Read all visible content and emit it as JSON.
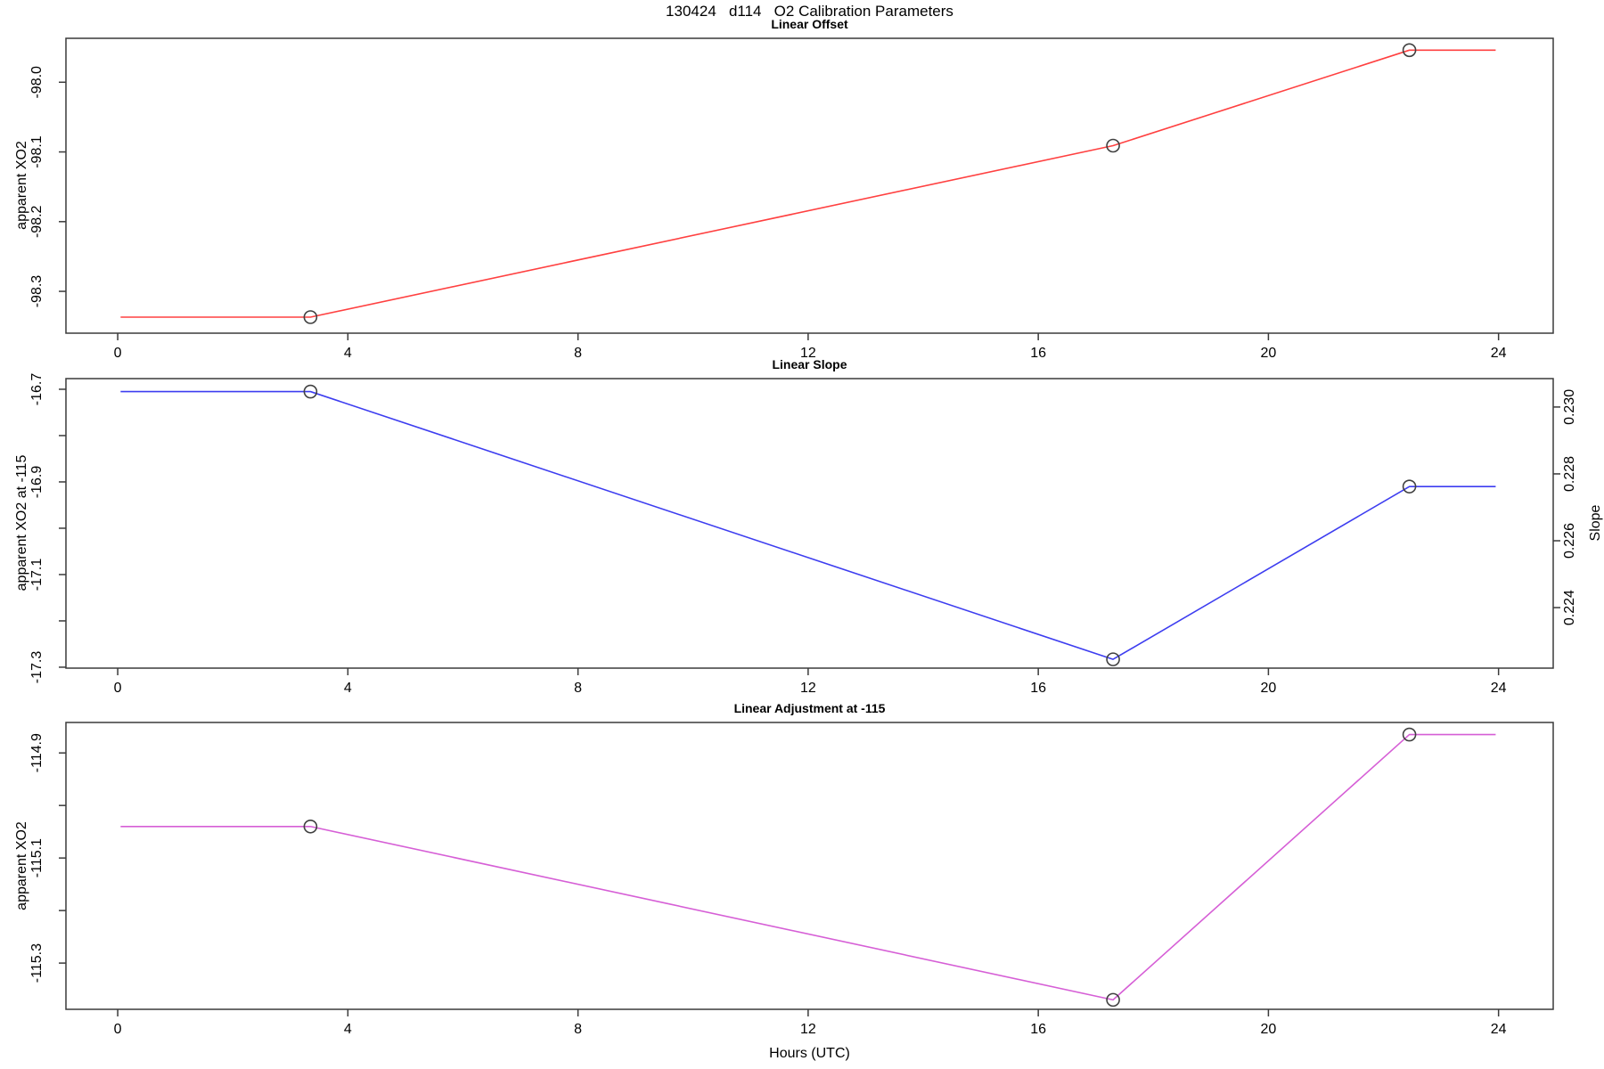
{
  "figure": {
    "title": "130424   d114   O2 Calibration Parameters",
    "xlabel": "Hours (UTC)",
    "x_ticks": [
      0,
      4,
      8,
      12,
      16,
      20,
      24
    ],
    "x_tick_labels": [
      "0",
      "4",
      "8",
      "12",
      "16",
      "20",
      "24"
    ],
    "xlim": [
      -0.9,
      24.95
    ],
    "axis_color": "#3a3a3a",
    "text_color": "#000000",
    "marker_color": "#404040"
  },
  "chart_data": [
    {
      "type": "line",
      "title": "Linear Offset",
      "ylabel": "apparent XO2",
      "line_color": "#ff4040",
      "ylim": [
        -98.36,
        -97.937
      ],
      "y_ticks": [
        -98.0,
        -98.1,
        -98.2,
        -98.3
      ],
      "y_tick_labels": [
        "-98.0",
        "-98.1",
        "-98.2",
        "-98.3"
      ],
      "y_minor_ticks": [],
      "x": [
        0.05,
        3.35,
        17.3,
        22.45,
        23.95
      ],
      "y": [
        -98.337,
        -98.337,
        -98.091,
        -97.954,
        -97.954
      ],
      "markers": {
        "x": [
          3.35,
          17.3,
          22.45
        ],
        "y": [
          -98.337,
          -98.091,
          -97.954
        ]
      }
    },
    {
      "type": "line",
      "title": "Linear Slope",
      "ylabel": "apparent XO2 at -115",
      "ylabel_right": "Slope",
      "line_color": "#3d3df0",
      "ylim": [
        -17.302,
        -16.677
      ],
      "y_ticks": [
        -16.7,
        -16.9,
        -17.1,
        -17.3
      ],
      "y_tick_labels": [
        "-16.7",
        "-16.9",
        "-17.1",
        "-17.3"
      ],
      "y_minor_ticks": [
        -16.8,
        -17.0,
        -17.2
      ],
      "ylim_right": [
        0.22219,
        0.23085
      ],
      "y_ticks_right": [
        0.224,
        0.226,
        0.228,
        0.23
      ],
      "y_tick_labels_right": [
        "0.224",
        "0.226",
        "0.228",
        "0.230"
      ],
      "x": [
        0.05,
        3.35,
        17.3,
        22.45,
        23.95
      ],
      "y": [
        -16.705,
        -16.705,
        -17.283,
        -16.91,
        -16.91
      ],
      "markers": {
        "x": [
          3.35,
          17.3,
          22.45
        ],
        "y": [
          -16.705,
          -17.283,
          -16.91
        ],
        "slope_values": [
          0.2305,
          0.2226,
          0.2276
        ]
      }
    },
    {
      "type": "line",
      "title": "Linear Adjustment at -115",
      "ylabel": "apparent XO2",
      "line_color": "#d65fd6",
      "ylim": [
        -115.388,
        -114.842
      ],
      "y_ticks": [
        -114.9,
        -115.1,
        -115.3
      ],
      "y_tick_labels": [
        "-114.9",
        "-115.1",
        "-115.3"
      ],
      "y_minor_ticks": [
        -115.0,
        -115.2
      ],
      "x": [
        0.05,
        3.35,
        17.3,
        22.45,
        23.95
      ],
      "y": [
        -115.04,
        -115.04,
        -115.37,
        -114.865,
        -114.865
      ],
      "markers": {
        "x": [
          3.35,
          17.3,
          22.45
        ],
        "y": [
          -115.04,
          -115.37,
          -114.865
        ]
      }
    }
  ]
}
